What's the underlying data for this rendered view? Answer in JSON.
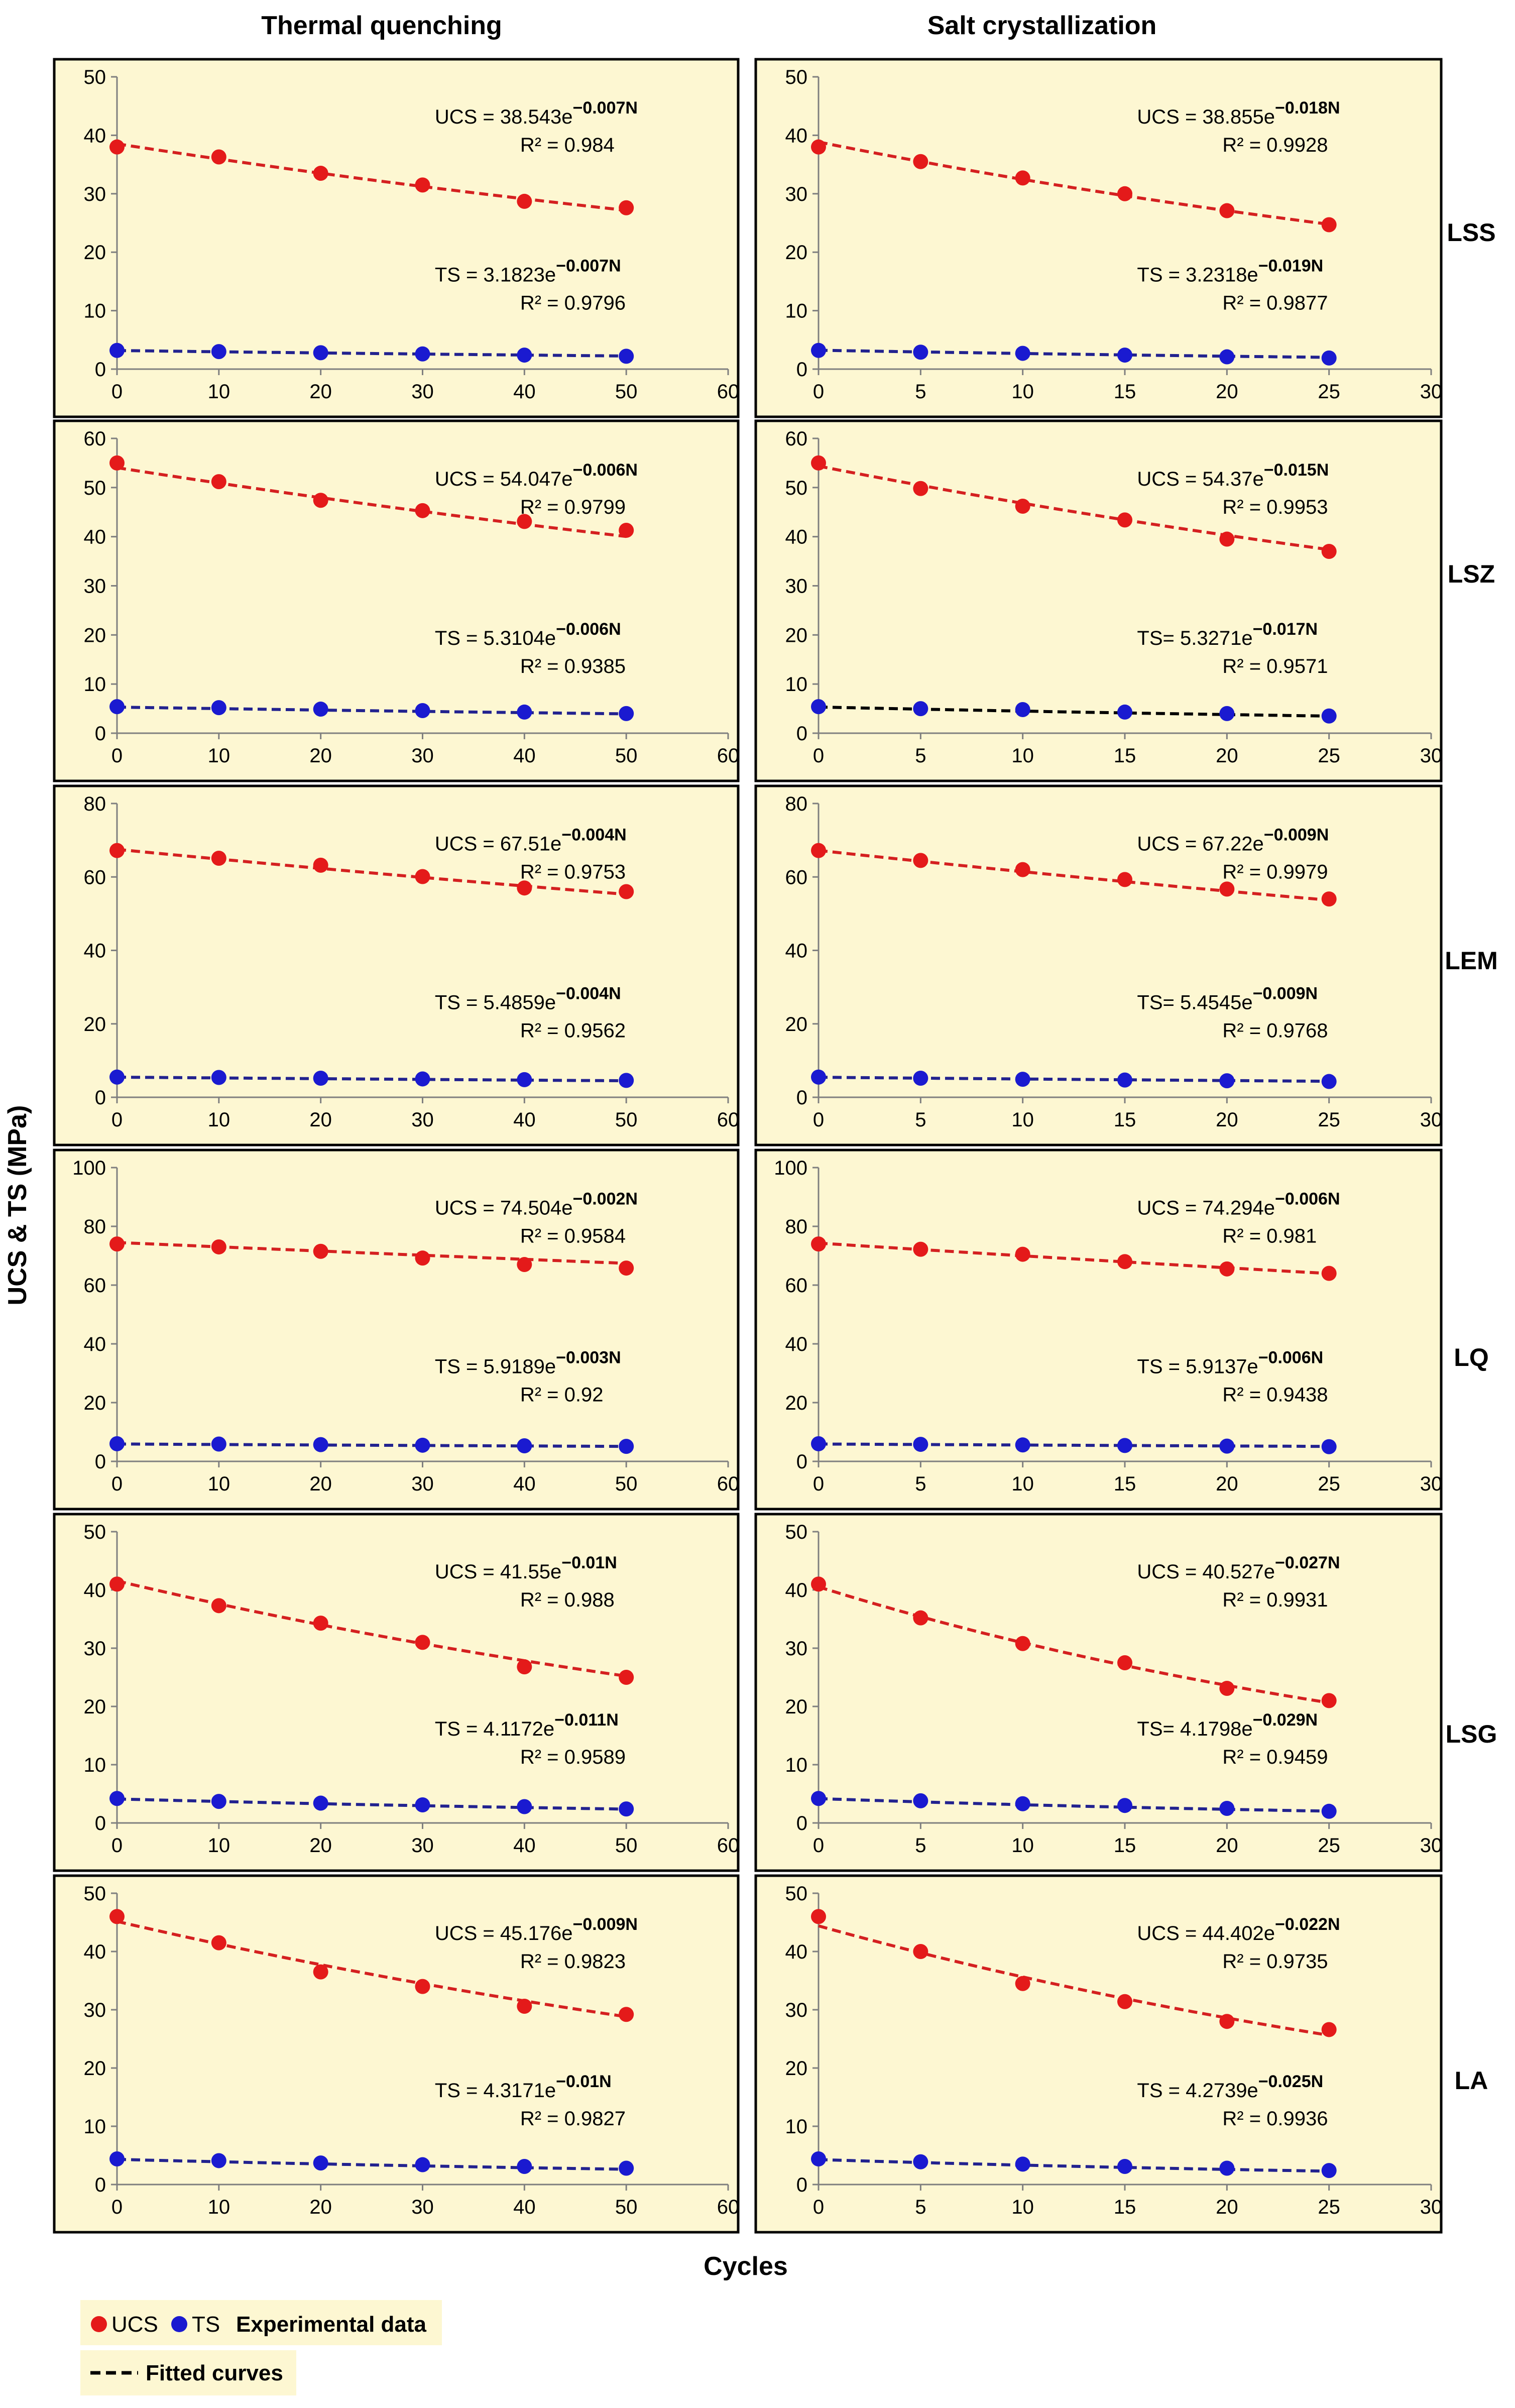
{
  "figure": {
    "col_titles": [
      "Thermal quenching",
      "Salt crystallization"
    ],
    "row_labels": [
      "LSS",
      "LSZ",
      "LEM",
      "LQ",
      "LSG",
      "LA"
    ],
    "ylabel": "UCS & TS (MPa)",
    "xlabel": "Cycles",
    "legend": {
      "ucs_label": "UCS",
      "ts_label": "TS",
      "experimental_label": "Experimental data",
      "fitted_label": "Fitted curves"
    },
    "colors": {
      "panel_bg": "#fdf7d2",
      "ucs": "#e41a1a",
      "ts": "#1a1ad0",
      "fit_ucs": "#d42020",
      "fit_ts": "#22228f",
      "fit_black": "#000000",
      "legend_bg": "#fdf7d2"
    }
  },
  "chart_data": [
    {
      "id": "LSS-thermal",
      "type": "scatter",
      "panel": "Thermal quenching / LSS",
      "xlim": [
        0,
        60
      ],
      "ylim": [
        0,
        50
      ],
      "xticks": [
        0,
        10,
        20,
        30,
        40,
        50,
        60
      ],
      "yticks": [
        0,
        10,
        20,
        30,
        40,
        50
      ],
      "series": [
        {
          "name": "UCS",
          "x": [
            0,
            10,
            20,
            30,
            40,
            50
          ],
          "y": [
            38.0,
            36.3,
            33.5,
            31.5,
            28.7,
            27.6
          ],
          "fit": {
            "a": 38.543,
            "b": -0.007
          },
          "eq_prefix": "UCS = 38.543e",
          "eq_exp": "−0.007N",
          "r2": "R² = 0.984"
        },
        {
          "name": "TS",
          "x": [
            0,
            10,
            20,
            30,
            40,
            50
          ],
          "y": [
            3.2,
            3.0,
            2.8,
            2.6,
            2.4,
            2.2
          ],
          "fit": {
            "a": 3.1823,
            "b": -0.007
          },
          "eq_prefix": "TS = 3.1823e",
          "eq_exp": "−0.007N",
          "r2": "R² = 0.9796"
        }
      ]
    },
    {
      "id": "LSS-salt",
      "type": "scatter",
      "panel": "Salt crystallization / LSS",
      "xlim": [
        0,
        30
      ],
      "ylim": [
        0,
        50
      ],
      "xticks": [
        0,
        5,
        10,
        15,
        20,
        25,
        30
      ],
      "yticks": [
        0,
        10,
        20,
        30,
        40,
        50
      ],
      "series": [
        {
          "name": "UCS",
          "x": [
            0,
            5,
            10,
            15,
            20,
            25
          ],
          "y": [
            38.0,
            35.5,
            32.7,
            30.0,
            27.1,
            24.7
          ],
          "fit": {
            "a": 38.855,
            "b": -0.018
          },
          "eq_prefix": "UCS = 38.855e",
          "eq_exp": "−0.018N",
          "r2": "R² = 0.9928"
        },
        {
          "name": "TS",
          "x": [
            0,
            5,
            10,
            15,
            20,
            25
          ],
          "y": [
            3.2,
            2.9,
            2.7,
            2.4,
            2.1,
            1.9
          ],
          "fit": {
            "a": 3.2318,
            "b": -0.019
          },
          "eq_prefix": "TS = 3.2318e",
          "eq_exp": "−0.019N",
          "r2": "R² = 0.9877"
        }
      ]
    },
    {
      "id": "LSZ-thermal",
      "type": "scatter",
      "panel": "Thermal quenching / LSZ",
      "xlim": [
        0,
        60
      ],
      "ylim": [
        0,
        60
      ],
      "xticks": [
        0,
        10,
        20,
        30,
        40,
        50,
        60
      ],
      "yticks": [
        0,
        10,
        20,
        30,
        40,
        50,
        60
      ],
      "series": [
        {
          "name": "UCS",
          "x": [
            0,
            10,
            20,
            30,
            40,
            50
          ],
          "y": [
            55.0,
            51.2,
            47.4,
            45.3,
            43.1,
            41.3
          ],
          "fit": {
            "a": 54.047,
            "b": -0.006
          },
          "eq_prefix": "UCS = 54.047e",
          "eq_exp": "−0.006N",
          "r2": "R² = 0.9799"
        },
        {
          "name": "TS",
          "x": [
            0,
            10,
            20,
            30,
            40,
            50
          ],
          "y": [
            5.4,
            5.2,
            4.9,
            4.6,
            4.3,
            4.0
          ],
          "fit": {
            "a": 5.3104,
            "b": -0.006
          },
          "eq_prefix": "TS = 5.3104e",
          "eq_exp": "−0.006N",
          "r2": "R² = 0.9385"
        }
      ]
    },
    {
      "id": "LSZ-salt",
      "type": "scatter",
      "panel": "Salt crystallization / LSZ",
      "xlim": [
        0,
        30
      ],
      "ylim": [
        0,
        60
      ],
      "xticks": [
        0,
        5,
        10,
        15,
        20,
        25,
        30
      ],
      "yticks": [
        0,
        10,
        20,
        30,
        40,
        50,
        60
      ],
      "series": [
        {
          "name": "UCS",
          "x": [
            0,
            5,
            10,
            15,
            20,
            25
          ],
          "y": [
            55.0,
            49.8,
            46.2,
            43.4,
            39.5,
            37.0
          ],
          "fit": {
            "a": 54.37,
            "b": -0.015
          },
          "eq_prefix": "UCS = 54.37e",
          "eq_exp": "−0.015N",
          "r2": "R² = 0.9953"
        },
        {
          "name": "TS",
          "x": [
            0,
            5,
            10,
            15,
            20,
            25
          ],
          "y": [
            5.4,
            5.0,
            4.8,
            4.3,
            4.0,
            3.5
          ],
          "fit": {
            "a": 5.3271,
            "b": -0.017
          },
          "eq_prefix": "TS= 5.3271e",
          "eq_exp": "−0.017N",
          "r2": "R² = 0.9571",
          "fit_color": "black"
        }
      ]
    },
    {
      "id": "LEM-thermal",
      "type": "scatter",
      "panel": "Thermal quenching / LEM",
      "xlim": [
        0,
        60
      ],
      "ylim": [
        0,
        80
      ],
      "xticks": [
        0,
        10,
        20,
        30,
        40,
        50,
        60
      ],
      "yticks": [
        0,
        20,
        40,
        60,
        80
      ],
      "series": [
        {
          "name": "UCS",
          "x": [
            0,
            10,
            20,
            30,
            40,
            50
          ],
          "y": [
            67.2,
            65.1,
            63.2,
            60.1,
            57.0,
            56.0
          ],
          "fit": {
            "a": 67.51,
            "b": -0.004
          },
          "eq_prefix": "UCS = 67.51e",
          "eq_exp": "−0.004N",
          "r2": "R² = 0.9753"
        },
        {
          "name": "TS",
          "x": [
            0,
            10,
            20,
            30,
            40,
            50
          ],
          "y": [
            5.5,
            5.4,
            5.2,
            5.0,
            4.8,
            4.6
          ],
          "fit": {
            "a": 5.4859,
            "b": -0.004
          },
          "eq_prefix": "TS = 5.4859e",
          "eq_exp": "−0.004N",
          "r2": "R² = 0.9562"
        }
      ]
    },
    {
      "id": "LEM-salt",
      "type": "scatter",
      "panel": "Salt crystallization / LEM",
      "xlim": [
        0,
        30
      ],
      "ylim": [
        0,
        80
      ],
      "xticks": [
        0,
        5,
        10,
        15,
        20,
        25,
        30
      ],
      "yticks": [
        0,
        20,
        40,
        60,
        80
      ],
      "series": [
        {
          "name": "UCS",
          "x": [
            0,
            5,
            10,
            15,
            20,
            25
          ],
          "y": [
            67.2,
            64.5,
            62.0,
            59.3,
            56.7,
            54.0
          ],
          "fit": {
            "a": 67.22,
            "b": -0.009
          },
          "eq_prefix": "UCS = 67.22e",
          "eq_exp": "−0.009N",
          "r2": "R² = 0.9979"
        },
        {
          "name": "TS",
          "x": [
            0,
            5,
            10,
            15,
            20,
            25
          ],
          "y": [
            5.5,
            5.2,
            4.9,
            4.7,
            4.5,
            4.3
          ],
          "fit": {
            "a": 5.4545,
            "b": -0.009
          },
          "eq_prefix": "TS= 5.4545e",
          "eq_exp": "−0.009N",
          "r2": "R² = 0.9768"
        }
      ]
    },
    {
      "id": "LQ-thermal",
      "type": "scatter",
      "panel": "Thermal quenching / LQ",
      "xlim": [
        0,
        60
      ],
      "ylim": [
        0,
        100
      ],
      "xticks": [
        0,
        10,
        20,
        30,
        40,
        50,
        60
      ],
      "yticks": [
        0,
        20,
        40,
        60,
        80,
        100
      ],
      "series": [
        {
          "name": "UCS",
          "x": [
            0,
            10,
            20,
            30,
            40,
            50
          ],
          "y": [
            74.0,
            73.0,
            71.5,
            69.2,
            67.0,
            65.8
          ],
          "fit": {
            "a": 74.504,
            "b": -0.002
          },
          "eq_prefix": "UCS = 74.504e",
          "eq_exp": "−0.002N",
          "r2": "R² = 0.9584"
        },
        {
          "name": "TS",
          "x": [
            0,
            10,
            20,
            30,
            40,
            50
          ],
          "y": [
            6.0,
            5.9,
            5.7,
            5.5,
            5.3,
            5.1
          ],
          "fit": {
            "a": 5.9189,
            "b": -0.003
          },
          "eq_prefix": "TS = 5.9189e",
          "eq_exp": "−0.003N",
          "r2": "R² = 0.92"
        }
      ]
    },
    {
      "id": "LQ-salt",
      "type": "scatter",
      "panel": "Salt crystallization / LQ",
      "xlim": [
        0,
        30
      ],
      "ylim": [
        0,
        100
      ],
      "xticks": [
        0,
        5,
        10,
        15,
        20,
        25,
        30
      ],
      "yticks": [
        0,
        20,
        40,
        60,
        80,
        100
      ],
      "series": [
        {
          "name": "UCS",
          "x": [
            0,
            5,
            10,
            15,
            20,
            25
          ],
          "y": [
            74.0,
            72.2,
            70.5,
            68.0,
            65.5,
            64.0
          ],
          "fit": {
            "a": 74.294,
            "b": -0.006
          },
          "eq_prefix": "UCS = 74.294e",
          "eq_exp": "−0.006N",
          "r2": "R² = 0.981"
        },
        {
          "name": "TS",
          "x": [
            0,
            5,
            10,
            15,
            20,
            25
          ],
          "y": [
            6.0,
            5.8,
            5.6,
            5.4,
            5.2,
            5.0
          ],
          "fit": {
            "a": 5.9137,
            "b": -0.006
          },
          "eq_prefix": "TS = 5.9137e",
          "eq_exp": "−0.006N",
          "r2": "R² = 0.9438"
        }
      ]
    },
    {
      "id": "LSG-thermal",
      "type": "scatter",
      "panel": "Thermal quenching / LSG",
      "xlim": [
        0,
        60
      ],
      "ylim": [
        0,
        50
      ],
      "xticks": [
        0,
        10,
        20,
        30,
        40,
        50,
        60
      ],
      "yticks": [
        0,
        10,
        20,
        30,
        40,
        50
      ],
      "series": [
        {
          "name": "UCS",
          "x": [
            0,
            10,
            20,
            30,
            40,
            50
          ],
          "y": [
            41.0,
            37.3,
            34.3,
            31.0,
            26.8,
            25.0
          ],
          "fit": {
            "a": 41.55,
            "b": -0.01
          },
          "eq_prefix": "UCS = 41.55e",
          "eq_exp": "−0.01N",
          "r2": "R² = 0.988"
        },
        {
          "name": "TS",
          "x": [
            0,
            10,
            20,
            30,
            40,
            50
          ],
          "y": [
            4.2,
            3.7,
            3.4,
            3.1,
            2.8,
            2.4
          ],
          "fit": {
            "a": 4.1172,
            "b": -0.011
          },
          "eq_prefix": "TS = 4.1172e",
          "eq_exp": "−0.011N",
          "r2": "R² = 0.9589"
        }
      ]
    },
    {
      "id": "LSG-salt",
      "type": "scatter",
      "panel": "Salt crystallization / LSG",
      "xlim": [
        0,
        30
      ],
      "ylim": [
        0,
        50
      ],
      "xticks": [
        0,
        5,
        10,
        15,
        20,
        25,
        30
      ],
      "yticks": [
        0,
        10,
        20,
        30,
        40,
        50
      ],
      "series": [
        {
          "name": "UCS",
          "x": [
            0,
            5,
            10,
            15,
            20,
            25
          ],
          "y": [
            41.0,
            35.2,
            30.8,
            27.5,
            23.1,
            21.0
          ],
          "fit": {
            "a": 40.527,
            "b": -0.027
          },
          "eq_prefix": "UCS = 40.527e",
          "eq_exp": "−0.027N",
          "r2": "R² = 0.9931"
        },
        {
          "name": "TS",
          "x": [
            0,
            5,
            10,
            15,
            20,
            25
          ],
          "y": [
            4.2,
            3.8,
            3.3,
            3.0,
            2.5,
            2.0
          ],
          "fit": {
            "a": 4.1798,
            "b": -0.029
          },
          "eq_prefix": "TS= 4.1798e",
          "eq_exp": "−0.029N",
          "r2": "R² = 0.9459"
        }
      ]
    },
    {
      "id": "LA-thermal",
      "type": "scatter",
      "panel": "Thermal quenching / LA",
      "xlim": [
        0,
        60
      ],
      "ylim": [
        0,
        50
      ],
      "xticks": [
        0,
        10,
        20,
        30,
        40,
        50,
        60
      ],
      "yticks": [
        0,
        10,
        20,
        30,
        40,
        50
      ],
      "series": [
        {
          "name": "UCS",
          "x": [
            0,
            10,
            20,
            30,
            40,
            50
          ],
          "y": [
            46.0,
            41.5,
            36.5,
            34.0,
            30.6,
            29.2
          ],
          "fit": {
            "a": 45.176,
            "b": -0.009
          },
          "eq_prefix": "UCS = 45.176e",
          "eq_exp": "−0.009N",
          "r2": "R² = 0.9823"
        },
        {
          "name": "TS",
          "x": [
            0,
            10,
            20,
            30,
            40,
            50
          ],
          "y": [
            4.4,
            4.1,
            3.7,
            3.4,
            3.1,
            2.8
          ],
          "fit": {
            "a": 4.3171,
            "b": -0.01
          },
          "eq_prefix": "TS = 4.3171e",
          "eq_exp": "−0.01N",
          "r2": "R² = 0.9827"
        }
      ]
    },
    {
      "id": "LA-salt",
      "type": "scatter",
      "panel": "Salt crystallization / LA",
      "xlim": [
        0,
        30
      ],
      "ylim": [
        0,
        50
      ],
      "xticks": [
        0,
        5,
        10,
        15,
        20,
        25,
        30
      ],
      "yticks": [
        0,
        10,
        20,
        30,
        40,
        50
      ],
      "series": [
        {
          "name": "UCS",
          "x": [
            0,
            5,
            10,
            15,
            20,
            25
          ],
          "y": [
            46.0,
            40.0,
            34.5,
            31.4,
            28.0,
            26.6
          ],
          "fit": {
            "a": 44.402,
            "b": -0.022
          },
          "eq_prefix": "UCS = 44.402e",
          "eq_exp": "−0.022N",
          "r2": "R² = 0.9735"
        },
        {
          "name": "TS",
          "x": [
            0,
            5,
            10,
            15,
            20,
            25
          ],
          "y": [
            4.4,
            3.9,
            3.5,
            3.1,
            2.8,
            2.4
          ],
          "fit": {
            "a": 4.2739,
            "b": -0.025
          },
          "eq_prefix": "TS = 4.2739e",
          "eq_exp": "−0.025N",
          "r2": "R² = 0.9936"
        }
      ]
    }
  ]
}
